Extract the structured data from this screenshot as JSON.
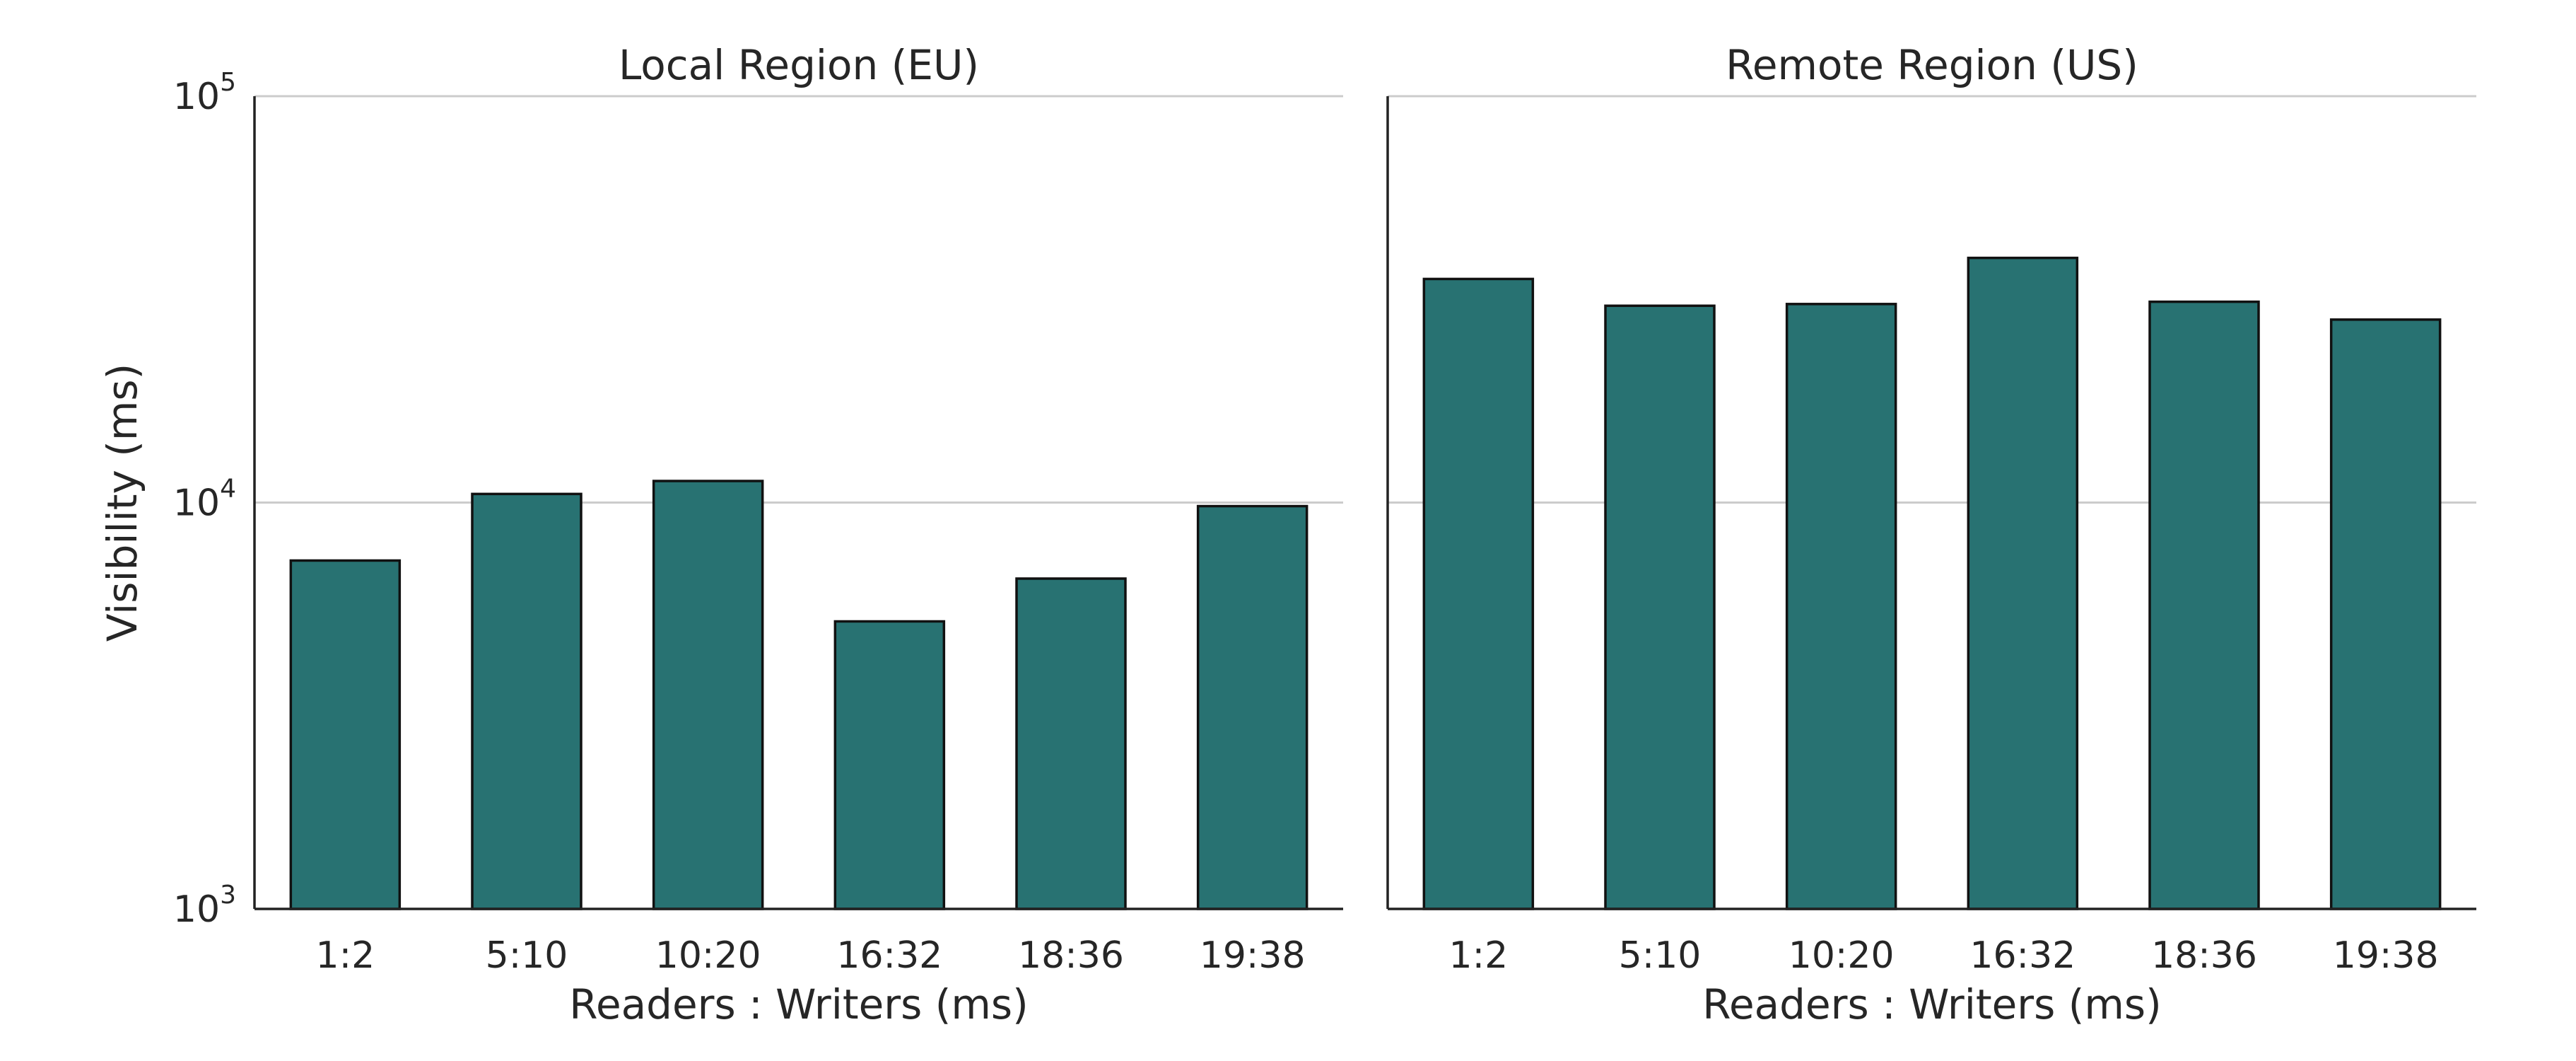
{
  "chart_data": [
    {
      "type": "bar",
      "title": "Local Region (EU)",
      "xlabel": "Readers : Writers (ms)",
      "ylabel": "Visibility (ms)",
      "categories": [
        "1:2",
        "5:10",
        "10:20",
        "16:32",
        "18:36",
        "19:38"
      ],
      "values": [
        7200,
        10500,
        11300,
        5100,
        6500,
        9800
      ],
      "yscale": "log",
      "ylim": [
        1000,
        100000
      ],
      "yticks": [
        {
          "base": "10",
          "exp": "3",
          "value": 1000
        },
        {
          "base": "10",
          "exp": "4",
          "value": 10000
        },
        {
          "base": "10",
          "exp": "5",
          "value": 100000
        }
      ],
      "grid": true
    },
    {
      "type": "bar",
      "title": "Remote Region (US)",
      "xlabel": "Readers : Writers (ms)",
      "ylabel": "",
      "categories": [
        "1:2",
        "5:10",
        "10:20",
        "16:32",
        "18:36",
        "19:38"
      ],
      "values": [
        35500,
        30500,
        30800,
        40000,
        31200,
        28200
      ],
      "yscale": "log",
      "ylim": [
        1000,
        100000
      ],
      "grid": true
    }
  ],
  "colors": {
    "bar_fill": "#287272",
    "bar_edge": "#111111",
    "grid": "#cccccc",
    "text": "#262626"
  }
}
